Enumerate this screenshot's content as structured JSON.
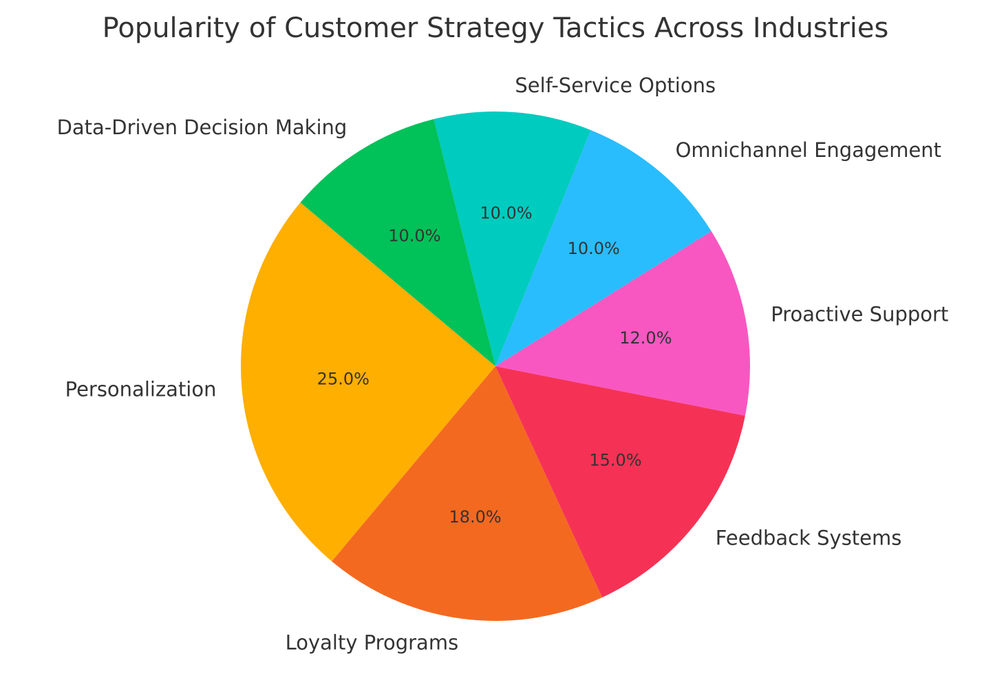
{
  "chart_data": {
    "type": "pie",
    "title": "Popularity of Customer Strategy Tactics Across Industries",
    "labels": [
      "Personalization",
      "Loyalty Programs",
      "Feedback Systems",
      "Proactive Support",
      "Omnichannel Engagement",
      "Self-Service Options",
      "Data-Driven Decision Making"
    ],
    "values": [
      25,
      18,
      15,
      12,
      10,
      10,
      10
    ],
    "value_labels": [
      "25.0%",
      "18.0%",
      "15.0%",
      "12.0%",
      "10.0%",
      "10.0%",
      "10.0%"
    ],
    "colors": [
      "#FFAF00",
      "#F46920",
      "#F53255",
      "#F857C1",
      "#29BDFD",
      "#00CBBF",
      "#01C159"
    ],
    "start_angle_deg": 140,
    "direction": "counterclockwise",
    "legend": "none"
  }
}
